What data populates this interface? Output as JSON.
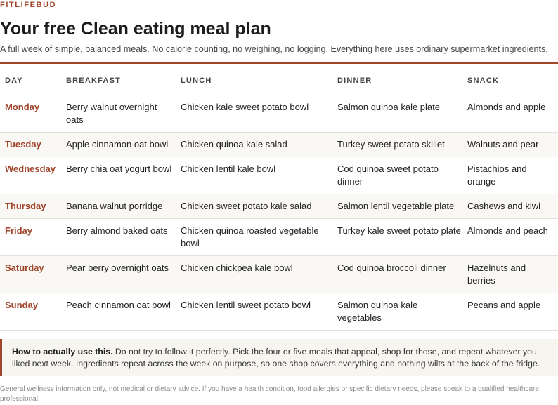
{
  "brand": "FITLIFEBUD",
  "title": "Your free Clean eating meal plan",
  "subtitle": "A full week of simple, balanced meals. No calorie counting, no weighing, no logging. Everything here uses ordinary supermarket ingredients.",
  "colors": {
    "accent": "#a0442a",
    "row_alt": "#faf8f4",
    "callout_bg": "#f7f5f0"
  },
  "table": {
    "headers": [
      "DAY",
      "BREAKFAST",
      "LUNCH",
      "DINNER",
      "SNACK"
    ],
    "rows": [
      {
        "day": "Monday",
        "breakfast": "Berry walnut overnight oats",
        "lunch": "Chicken kale sweet potato bowl",
        "dinner": "Salmon quinoa kale plate",
        "snack": "Almonds and apple"
      },
      {
        "day": "Tuesday",
        "breakfast": "Apple cinnamon oat bowl",
        "lunch": "Chicken quinoa kale salad",
        "dinner": "Turkey sweet potato skillet",
        "snack": "Walnuts and pear"
      },
      {
        "day": "Wednesday",
        "breakfast": "Berry chia oat yogurt bowl",
        "lunch": "Chicken lentil kale bowl",
        "dinner": "Cod quinoa sweet potato dinner",
        "snack": "Pistachios and orange"
      },
      {
        "day": "Thursday",
        "breakfast": "Banana walnut porridge",
        "lunch": "Chicken sweet potato kale salad",
        "dinner": "Salmon lentil vegetable plate",
        "snack": "Cashews and kiwi"
      },
      {
        "day": "Friday",
        "breakfast": "Berry almond baked oats",
        "lunch": "Chicken quinoa roasted vegetable bowl",
        "dinner": "Turkey kale sweet potato plate",
        "snack": "Almonds and peach"
      },
      {
        "day": "Saturday",
        "breakfast": "Pear berry overnight oats",
        "lunch": "Chicken chickpea kale bowl",
        "dinner": "Cod quinoa broccoli dinner",
        "snack": "Hazelnuts and berries"
      },
      {
        "day": "Sunday",
        "breakfast": "Peach cinnamon oat bowl",
        "lunch": "Chicken lentil sweet potato bowl",
        "dinner": "Salmon quinoa kale vegetables",
        "snack": "Pecans and apple"
      }
    ]
  },
  "callout": {
    "lead": "How to actually use this.",
    "body": " Do not try to follow it perfectly. Pick the four or five meals that appeal, shop for those, and repeat whatever you liked next week. Ingredients repeat across the week on purpose, so one shop covers everything and nothing wilts at the back of the fridge."
  },
  "disclaimer": "General wellness information only, not medical or dietary advice. If you have a health condition, food allergies or specific dietary needs, please speak to a qualified healthcare professional."
}
